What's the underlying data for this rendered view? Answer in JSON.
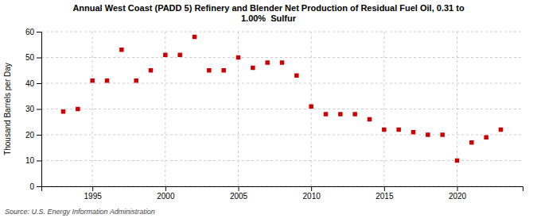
{
  "chart_data": {
    "type": "scatter",
    "title": "Annual West Coast (PADD 5) Refinery and Blender Net Production of Residual Fuel Oil, 0.31 to\n1.00%  Sulfur",
    "y_label": "Thousand Barrels per Day",
    "annotation": "Source: U.S. Energy Information Administration",
    "x": [
      1993,
      1994,
      1995,
      1996,
      1997,
      1998,
      1999,
      2000,
      2001,
      2002,
      2003,
      2004,
      2005,
      2006,
      2007,
      2008,
      2009,
      2010,
      2011,
      2012,
      2013,
      2014,
      2015,
      2016,
      2017,
      2018,
      2019,
      2020,
      2021,
      2022,
      2023
    ],
    "values": [
      29,
      30,
      41,
      41,
      53,
      41,
      45,
      51,
      51,
      58,
      45,
      45,
      50,
      46,
      48,
      48,
      43,
      31,
      28,
      28,
      28,
      26,
      22,
      22,
      21,
      20,
      20,
      10,
      17,
      19,
      22
    ],
    "color": "#cc0000",
    "marker": "square",
    "ylim": [
      0,
      60
    ],
    "yticks": [
      0,
      10,
      20,
      30,
      40,
      50,
      60
    ],
    "xlim": [
      1991.5,
      2024.5
    ],
    "xticks": [
      1995,
      2000,
      2005,
      2010,
      2015,
      2020
    ],
    "grid": true
  }
}
